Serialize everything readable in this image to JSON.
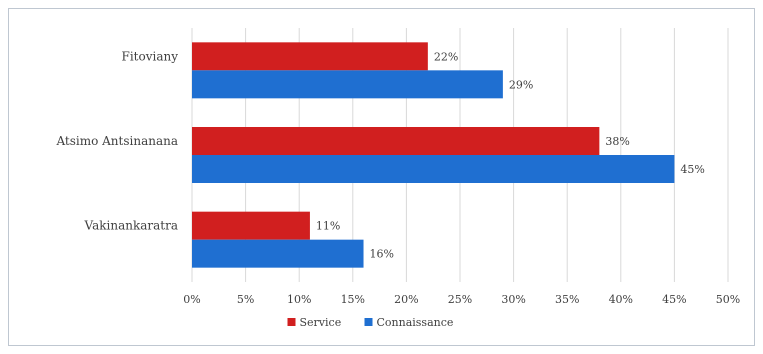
{
  "chart_data": {
    "type": "bar",
    "orientation": "horizontal",
    "categories": [
      "Fitoviany",
      "Atsimo Antsinanana",
      "Vakinankaratra"
    ],
    "series": [
      {
        "name": "Service",
        "values": [
          22,
          38,
          11
        ],
        "color": "#d11f1f",
        "labels": [
          "22%",
          "38%",
          "11%"
        ]
      },
      {
        "name": "Connaissance",
        "values": [
          29,
          45,
          16
        ],
        "color": "#1f6fd1",
        "labels": [
          "29%",
          "45%",
          "16%"
        ]
      }
    ],
    "xlim": [
      0,
      50
    ],
    "ticks": [
      0,
      5,
      10,
      15,
      20,
      25,
      30,
      35,
      40,
      45,
      50
    ],
    "tick_labels": [
      "0%",
      "5%",
      "10%",
      "15%",
      "20%",
      "25%",
      "30%",
      "35%",
      "40%",
      "45%",
      "50%"
    ],
    "grid": true,
    "legend": "bottom"
  }
}
